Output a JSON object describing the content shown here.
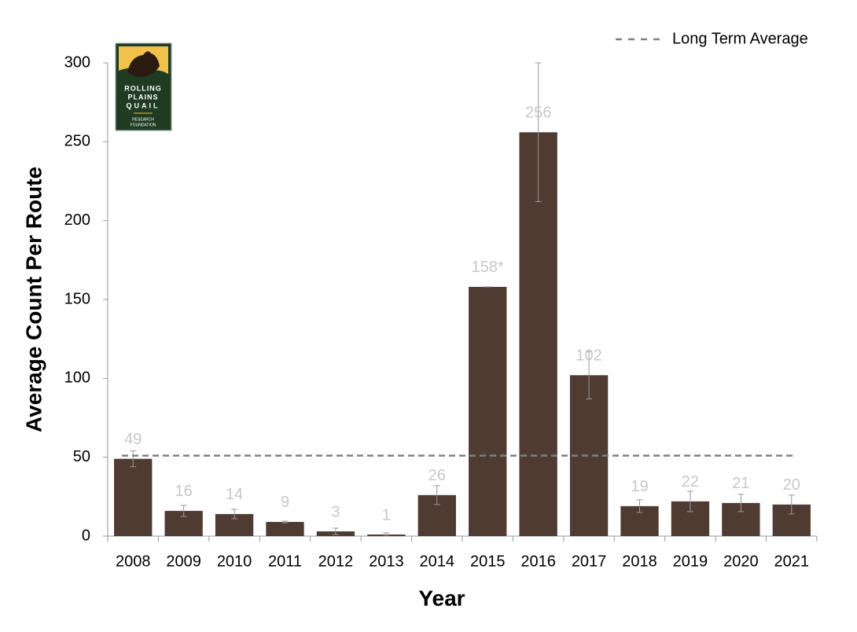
{
  "chart_data": {
    "type": "bar",
    "categories": [
      "2008",
      "2009",
      "2010",
      "2011",
      "2012",
      "2013",
      "2014",
      "2015",
      "2016",
      "2017",
      "2018",
      "2019",
      "2020",
      "2021"
    ],
    "values": [
      49,
      16,
      14,
      9,
      3,
      1,
      26,
      158,
      256,
      102,
      19,
      22,
      21,
      20
    ],
    "value_labels": [
      "49",
      "16",
      "14",
      "9",
      "3",
      "1",
      "26",
      "158*",
      "256",
      "102",
      "19",
      "22",
      "21",
      "20"
    ],
    "errors": [
      5,
      3.5,
      3,
      0.5,
      2,
      1,
      6,
      0,
      44,
      15,
      4,
      6.5,
      5.5,
      6
    ],
    "color": "#4f3b32",
    "average": {
      "name": "Long Term Average",
      "value": 51,
      "color": "#808080"
    },
    "legend": "top-right",
    "ylim": [
      0,
      300
    ],
    "yticks": [
      0,
      50,
      100,
      150,
      200,
      250,
      300
    ],
    "x_label": "Year",
    "y_label": "Average Count Per Route"
  },
  "logo": {
    "lines": [
      "ROLLING",
      "PLAINS",
      "QUAIL",
      "RESEARCH",
      "FOUNDATION"
    ]
  }
}
